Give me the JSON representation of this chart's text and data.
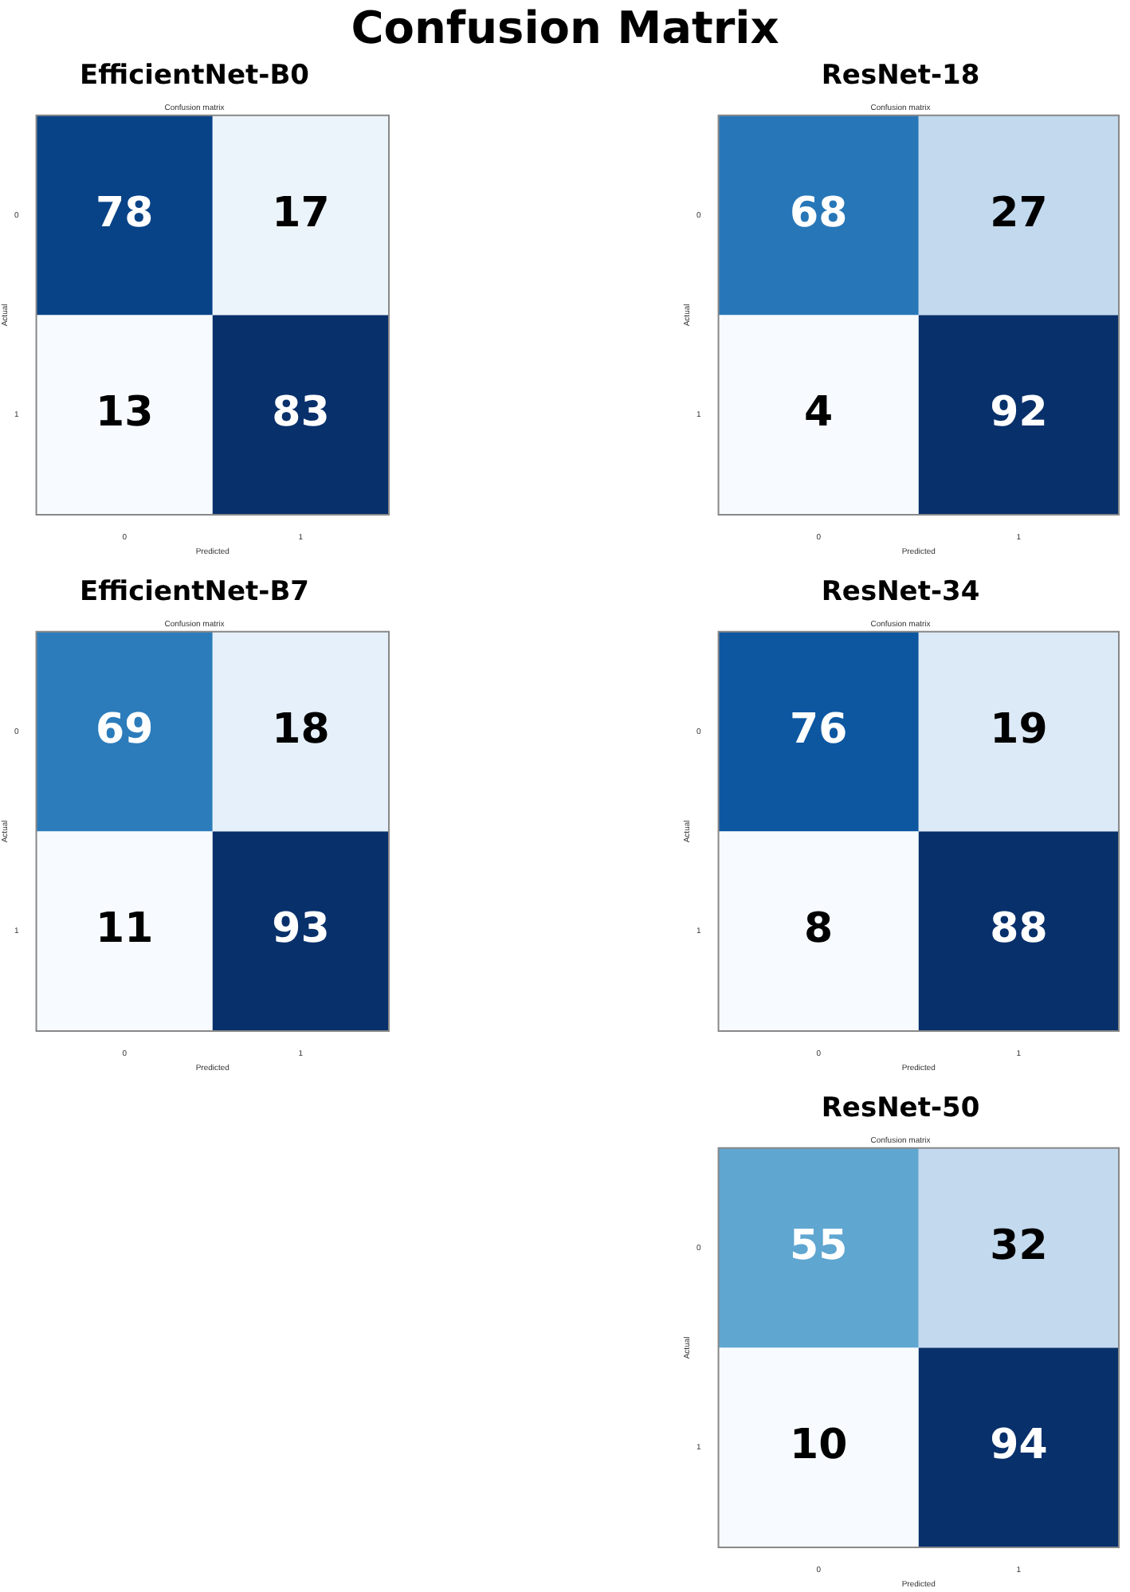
{
  "chart_data": [
    {
      "type": "heatmap",
      "title": "EfficientNet-B0",
      "subtitle": "Confusion matrix",
      "xlabel": "Predicted",
      "ylabel": "Actual",
      "categories": [
        "0",
        "1"
      ],
      "y_categories": [
        "0",
        "1"
      ],
      "cells": [
        [
          78,
          17
        ],
        [
          13,
          83
        ]
      ],
      "data_labels": true,
      "annotations": [
        "Confusion Matrix"
      ]
    },
    {
      "type": "heatmap",
      "title": "ResNet-18",
      "subtitle": "Confusion matrix",
      "xlabel": "Predicted",
      "ylabel": "Actual",
      "categories": [
        "0",
        "1"
      ],
      "y_categories": [
        "0",
        "1"
      ],
      "cells": [
        [
          68,
          27
        ],
        [
          4,
          92
        ]
      ],
      "data_labels": true
    },
    {
      "type": "heatmap",
      "title": "EfficientNet-B7",
      "subtitle": "Confusion matrix",
      "xlabel": "Predicted",
      "ylabel": "Actual",
      "categories": [
        "0",
        "1"
      ],
      "y_categories": [
        "0",
        "1"
      ],
      "cells": [
        [
          69,
          18
        ],
        [
          11,
          93
        ]
      ],
      "data_labels": true
    },
    {
      "type": "heatmap",
      "title": "ResNet-34",
      "subtitle": "Confusion matrix",
      "xlabel": "Predicted",
      "ylabel": "Actual",
      "categories": [
        "0",
        "1"
      ],
      "y_categories": [
        "0",
        "1"
      ],
      "cells": [
        [
          76,
          19
        ],
        [
          8,
          88
        ]
      ],
      "data_labels": true
    },
    {
      "type": "heatmap",
      "title": "ResNet-50",
      "subtitle": "Confusion matrix",
      "xlabel": "Predicted",
      "ylabel": "Actual",
      "categories": [
        "0",
        "1"
      ],
      "y_categories": [
        "0",
        "1"
      ],
      "cells": [
        [
          55,
          32
        ],
        [
          10,
          94
        ]
      ],
      "data_labels": true
    }
  ]
}
